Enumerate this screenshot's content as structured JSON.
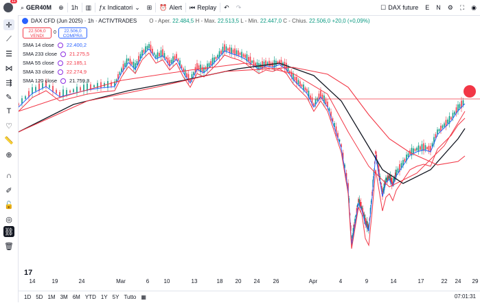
{
  "topbar": {
    "notifications": "11",
    "symbol": "GER40M",
    "interval": "1h",
    "indicators_label": "Indicatori",
    "alert_label": "Alert",
    "replay_label": "Replay",
    "watch_label": "DAX future",
    "e_label": "E",
    "n_label": "N"
  },
  "legend": {
    "title": "DAX CFD (Jun 2025) · 1h · ACTIVTRADES",
    "open_label": "O - Aper.",
    "open": "22.484,5",
    "high_label": "H - Max.",
    "high": "22.513,5",
    "low_label": "L - Min.",
    "low": "22.447,0",
    "close_label": "C - Chius.",
    "close": "22.506,0",
    "change": "+20,0 (+0,09%)",
    "sell_price": "22.506,0",
    "sell_label": "VENDI",
    "spread": "0",
    "buy_price": "22.506,0",
    "buy_label": "COMPRA"
  },
  "moving_averages": [
    {
      "label": "SMA 14 close",
      "value": "22.400,2",
      "color": "#2962ff"
    },
    {
      "label": "SMA 233 close",
      "value": "21.275,5",
      "color": "#f23645"
    },
    {
      "label": "SMA 55 close",
      "value": "22.185,1",
      "color": "#f23645"
    },
    {
      "label": "SMA 33 close",
      "value": "22.274,9",
      "color": "#f23645"
    },
    {
      "label": "SMA 120 close",
      "value": "21.759,3",
      "color": "#131722"
    }
  ],
  "xaxis": [
    "14",
    "19",
    "24",
    "Mar",
    "6",
    "10",
    "13",
    "18",
    "20",
    "24",
    "26",
    "Apr",
    "4",
    "9",
    "14",
    "17",
    "22",
    "24",
    "29"
  ],
  "timeframes": [
    "1D",
    "5D",
    "1M",
    "3M",
    "6M",
    "YTD",
    "1Y",
    "5Y",
    "Tutto"
  ],
  "clock": "07:01:31",
  "colors": {
    "up": "#089981",
    "down": "#f23645",
    "accent": "#2962ff"
  }
}
